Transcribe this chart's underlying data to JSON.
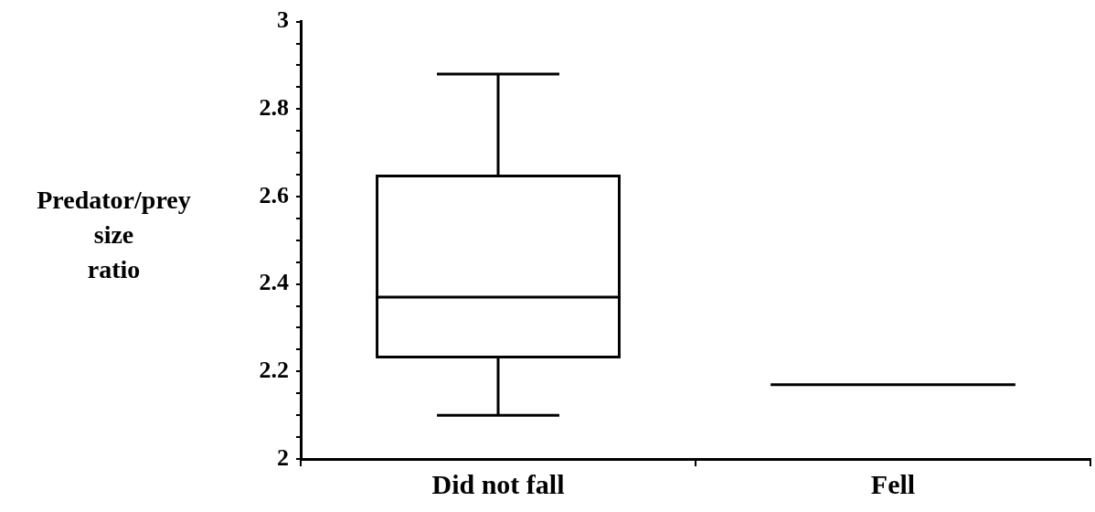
{
  "chart_data": {
    "type": "box",
    "ylabel": "Predator/prey size ratio",
    "categories": [
      "Did not fall",
      "Fell"
    ],
    "boxes": [
      {
        "low": 2.1,
        "q1": 2.23,
        "median": 2.37,
        "q3": 2.65,
        "high": 2.88
      },
      {
        "low": 2.17,
        "q1": 2.17,
        "median": 2.17,
        "q3": 2.17,
        "high": 2.17
      }
    ],
    "ylim": [
      2,
      3
    ],
    "yticks": [
      2,
      {
        "value": 2.05,
        "label": null
      },
      {
        "value": 2.1,
        "label": null
      },
      {
        "value": 2.15,
        "label": null
      },
      2.2,
      {
        "value": 2.25,
        "label": null
      },
      {
        "value": 2.3,
        "label": null
      },
      {
        "value": 2.35,
        "label": null
      },
      2.4,
      {
        "value": 2.45,
        "label": null
      },
      {
        "value": 2.5,
        "label": null
      },
      {
        "value": 2.55,
        "label": null
      },
      2.6,
      {
        "value": 2.65,
        "label": null
      },
      {
        "value": 2.7,
        "label": null
      },
      {
        "value": 2.75,
        "label": null
      },
      2.8,
      {
        "value": 2.85,
        "label": null
      },
      {
        "value": 2.9,
        "label": null
      },
      {
        "value": 2.95,
        "label": null
      },
      3
    ]
  }
}
